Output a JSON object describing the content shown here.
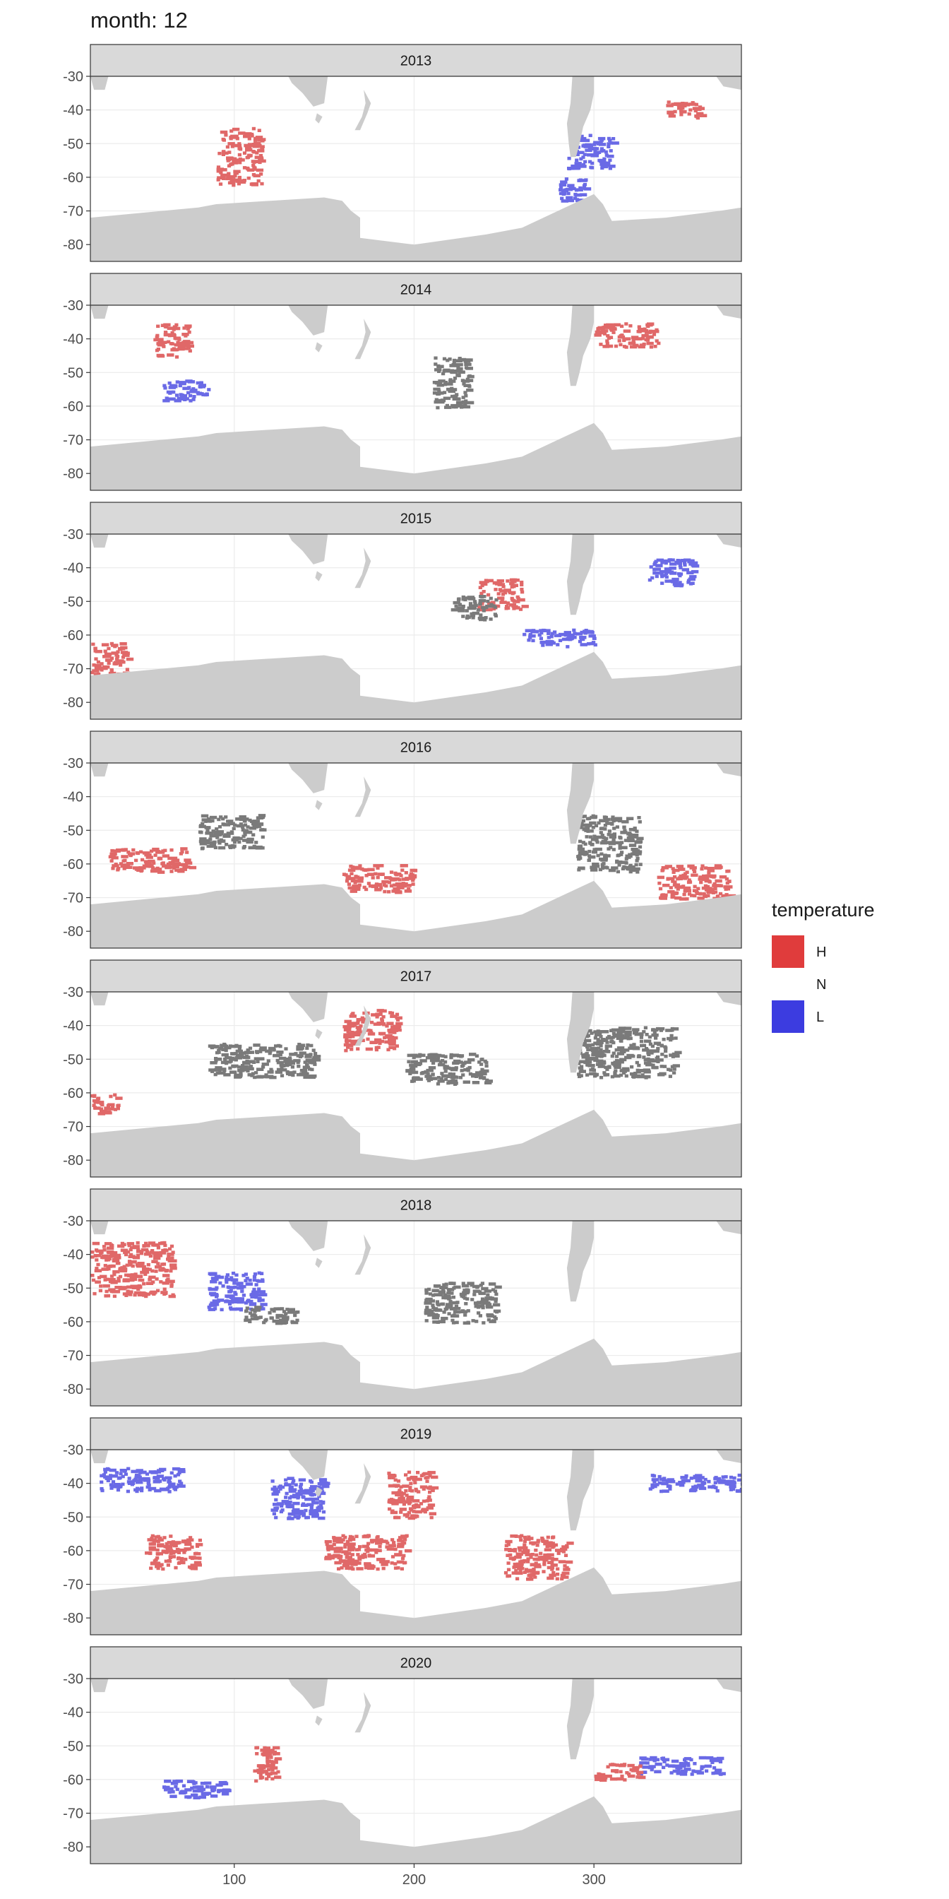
{
  "page_title": "month: 12",
  "chart_data": {
    "type": "heatmap",
    "title": "month: 12",
    "xlim": [
      20,
      382
    ],
    "ylim": [
      -85,
      -30
    ],
    "x_ticks": [
      {
        "value": 100,
        "label": "100"
      },
      {
        "value": 200,
        "label": "200"
      },
      {
        "value": 300,
        "label": "300"
      }
    ],
    "y_ticks": [
      {
        "value": -30,
        "label": "-30"
      },
      {
        "value": -40,
        "label": "-40"
      },
      {
        "value": -50,
        "label": "-50"
      },
      {
        "value": -60,
        "label": "-60"
      },
      {
        "value": -70,
        "label": "-70"
      },
      {
        "value": -80,
        "label": "-80"
      }
    ],
    "grid": true,
    "legend": {
      "title": "temperature",
      "position": "right",
      "entries": [
        {
          "label": "H",
          "color": "#e03c3c"
        },
        {
          "label": "N",
          "color": ""
        },
        {
          "label": "L",
          "color": "#3c3ce0"
        }
      ]
    },
    "colors": {
      "H": "#e06868",
      "N": "#7a7a7a",
      "L": "#6a6ae6",
      "land": "#cccccc",
      "strip": "#d9d9d9"
    },
    "facets": [
      {
        "label": "2013",
        "cells": [
          {
            "cat": "H",
            "x": [
              90,
              115
            ],
            "y": [
              -62,
              -45
            ]
          },
          {
            "cat": "H",
            "x": [
              340,
              360
            ],
            "y": [
              -42,
              -37
            ]
          },
          {
            "cat": "L",
            "x": [
              285,
              310
            ],
            "y": [
              -57,
              -47
            ]
          },
          {
            "cat": "L",
            "x": [
              280,
              295
            ],
            "y": [
              -68,
              -60
            ]
          }
        ]
      },
      {
        "label": "2014",
        "cells": [
          {
            "cat": "H",
            "x": [
              55,
              75
            ],
            "y": [
              -45,
              -35
            ]
          },
          {
            "cat": "H",
            "x": [
              300,
              335
            ],
            "y": [
              -42,
              -35
            ]
          },
          {
            "cat": "L",
            "x": [
              60,
              85
            ],
            "y": [
              -58,
              -52
            ]
          },
          {
            "cat": "N",
            "x": [
              210,
              230
            ],
            "y": [
              -60,
              -45
            ]
          }
        ]
      },
      {
        "label": "2015",
        "cells": [
          {
            "cat": "H",
            "x": [
              20,
              40
            ],
            "y": [
              -72,
              -62
            ]
          },
          {
            "cat": "H",
            "x": [
              235,
              260
            ],
            "y": [
              -52,
              -43
            ]
          },
          {
            "cat": "L",
            "x": [
              260,
              300
            ],
            "y": [
              -63,
              -58
            ]
          },
          {
            "cat": "L",
            "x": [
              330,
              355
            ],
            "y": [
              -45,
              -37
            ]
          },
          {
            "cat": "N",
            "x": [
              220,
              245
            ],
            "y": [
              -55,
              -48
            ]
          }
        ]
      },
      {
        "label": "2016",
        "cells": [
          {
            "cat": "H",
            "x": [
              30,
              75
            ],
            "y": [
              -62,
              -55
            ]
          },
          {
            "cat": "H",
            "x": [
              160,
              200
            ],
            "y": [
              -68,
              -60
            ]
          },
          {
            "cat": "H",
            "x": [
              335,
              375
            ],
            "y": [
              -70,
              -60
            ]
          },
          {
            "cat": "N",
            "x": [
              80,
              115
            ],
            "y": [
              -55,
              -45
            ]
          },
          {
            "cat": "N",
            "x": [
              290,
              325
            ],
            "y": [
              -62,
              -45
            ]
          }
        ]
      },
      {
        "label": "2017",
        "cells": [
          {
            "cat": "H",
            "x": [
              160,
              190
            ],
            "y": [
              -47,
              -35
            ]
          },
          {
            "cat": "H",
            "x": [
              20,
              35
            ],
            "y": [
              -66,
              -60
            ]
          },
          {
            "cat": "N",
            "x": [
              195,
              240
            ],
            "y": [
              -57,
              -48
            ]
          },
          {
            "cat": "N",
            "x": [
              85,
              145
            ],
            "y": [
              -55,
              -45
            ]
          },
          {
            "cat": "N",
            "x": [
              290,
              345
            ],
            "y": [
              -55,
              -40
            ]
          }
        ]
      },
      {
        "label": "2018",
        "cells": [
          {
            "cat": "H",
            "x": [
              20,
              65
            ],
            "y": [
              -52,
              -36
            ]
          },
          {
            "cat": "L",
            "x": [
              85,
              115
            ],
            "y": [
              -56,
              -45
            ]
          },
          {
            "cat": "N",
            "x": [
              205,
              245
            ],
            "y": [
              -60,
              -48
            ]
          },
          {
            "cat": "N",
            "x": [
              105,
              135
            ],
            "y": [
              -60,
              -55
            ]
          }
        ]
      },
      {
        "label": "2019",
        "cells": [
          {
            "cat": "H",
            "x": [
              185,
              210
            ],
            "y": [
              -50,
              -36
            ]
          },
          {
            "cat": "H",
            "x": [
              50,
              80
            ],
            "y": [
              -65,
              -55
            ]
          },
          {
            "cat": "H",
            "x": [
              250,
              285
            ],
            "y": [
              -68,
              -55
            ]
          },
          {
            "cat": "H",
            "x": [
              150,
              195
            ],
            "y": [
              -65,
              -55
            ]
          },
          {
            "cat": "L",
            "x": [
              25,
              70
            ],
            "y": [
              -42,
              -35
            ]
          },
          {
            "cat": "L",
            "x": [
              120,
              150
            ],
            "y": [
              -50,
              -38
            ]
          },
          {
            "cat": "L",
            "x": [
              330,
              382
            ],
            "y": [
              -42,
              -37
            ]
          }
        ]
      },
      {
        "label": "2020",
        "cells": [
          {
            "cat": "L",
            "x": [
              60,
              95
            ],
            "y": [
              -65,
              -60
            ]
          },
          {
            "cat": "L",
            "x": [
              325,
              370
            ],
            "y": [
              -58,
              -53
            ]
          },
          {
            "cat": "H",
            "x": [
              300,
              325
            ],
            "y": [
              -60,
              -55
            ]
          },
          {
            "cat": "H",
            "x": [
              110,
              125
            ],
            "y": [
              -60,
              -50
            ]
          }
        ]
      }
    ]
  }
}
